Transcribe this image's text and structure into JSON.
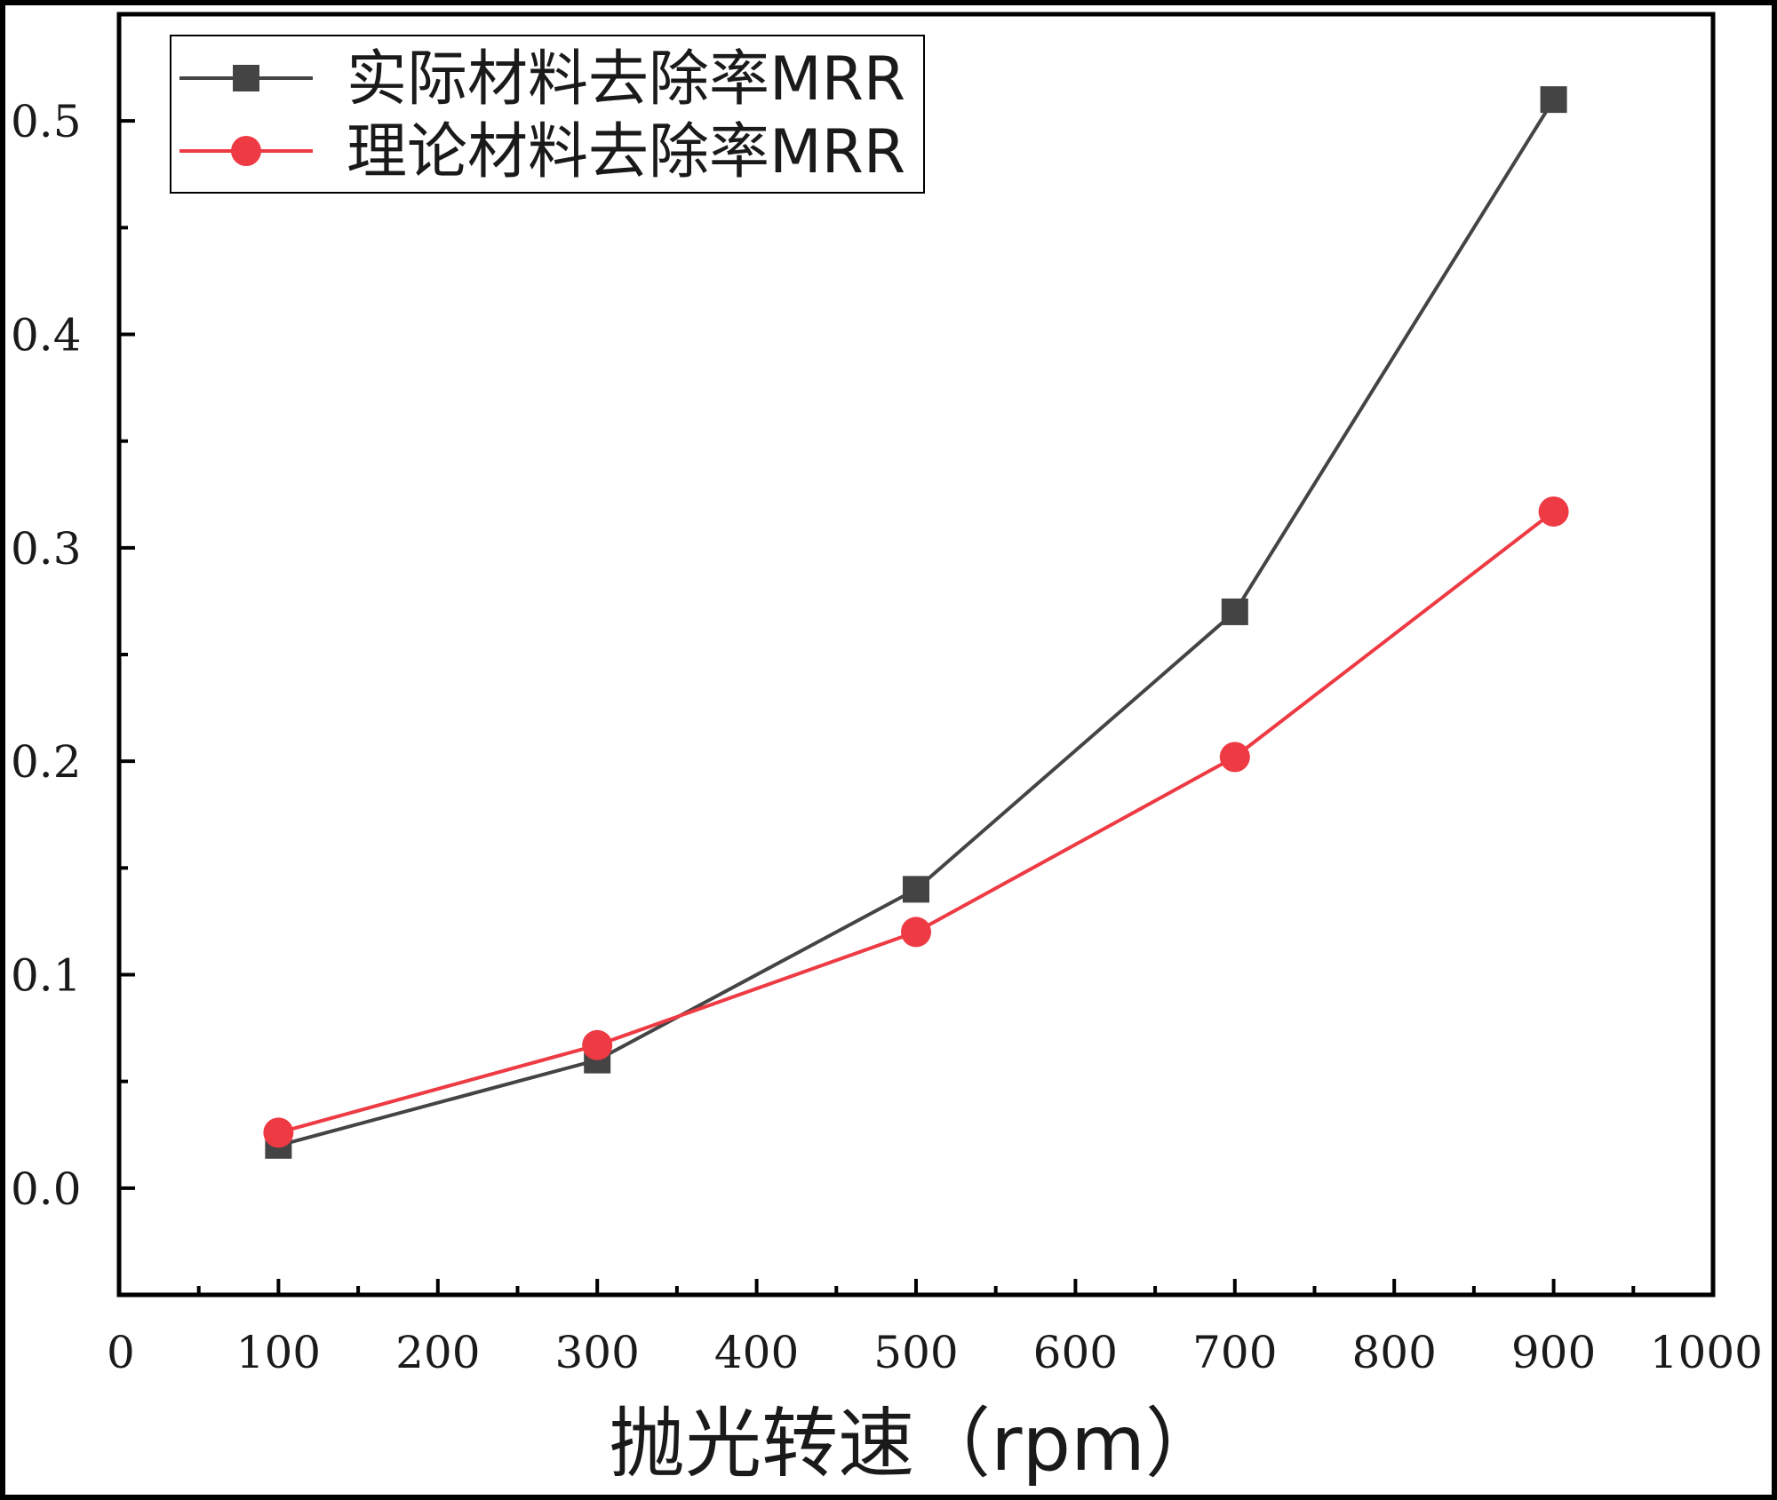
{
  "chart_data": {
    "type": "line",
    "title": "",
    "xlabel": "抛光转速（rpm）",
    "ylabel": "",
    "xlim": [
      0,
      1000
    ],
    "ylim": [
      -0.05,
      0.55
    ],
    "x_ticks": [
      "0",
      "100",
      "200",
      "300",
      "400",
      "500",
      "600",
      "700",
      "800",
      "900",
      "1000"
    ],
    "y_ticks": [
      "0.0",
      "0.1",
      "0.2",
      "0.3",
      "0.4",
      "0.5"
    ],
    "x_tick_values": [
      0,
      100,
      200,
      300,
      400,
      500,
      600,
      700,
      800,
      900,
      1000
    ],
    "y_tick_values": [
      0,
      0.1,
      0.2,
      0.3,
      0.4,
      0.5
    ],
    "grid": false,
    "legend_position": "top-left",
    "x": [
      100,
      300,
      500,
      700,
      900
    ],
    "series": [
      {
        "name": "实际材料去除率MRR",
        "marker": "square",
        "color": "#444444",
        "values": [
          0.02,
          0.06,
          0.14,
          0.27,
          0.51
        ]
      },
      {
        "name": "理论材料去除率MRR",
        "marker": "circle",
        "color": "#ee3a43",
        "values": [
          0.026,
          0.067,
          0.12,
          0.202,
          0.317
        ]
      }
    ]
  }
}
